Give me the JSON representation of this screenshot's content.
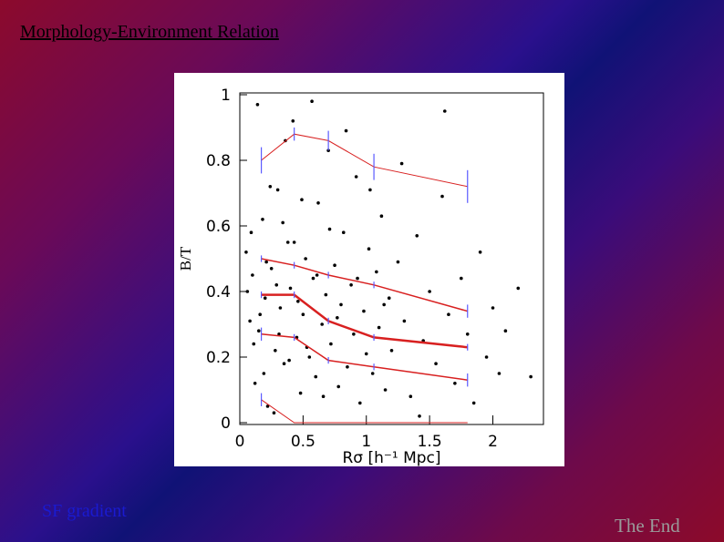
{
  "title": "Morphology-Environment Relation",
  "link": "SF gradient",
  "end": "The End",
  "chart_data": {
    "type": "scatter",
    "x_label": "Rσ [h⁻¹ Mpc]",
    "y_label": "B/T",
    "xlim": [
      0,
      2.4
    ],
    "ylim": [
      0,
      1
    ],
    "xticks": [
      0,
      0.5,
      1,
      1.5,
      2
    ],
    "yticks": [
      0,
      0.2,
      0.4,
      0.6,
      0.8,
      1
    ],
    "point_color": "#000000",
    "x": [
      0.05,
      0.08,
      0.1,
      0.12,
      0.15,
      0.18,
      0.2,
      0.22,
      0.25,
      0.28,
      0.3,
      0.32,
      0.35,
      0.38,
      0.4,
      0.42,
      0.45,
      0.48,
      0.5,
      0.52,
      0.55,
      0.58,
      0.6,
      0.62,
      0.65,
      0.68,
      0.7,
      0.72,
      0.75,
      0.78,
      0.8,
      0.82,
      0.85,
      0.88,
      0.9,
      0.92,
      0.95,
      0.98,
      1.0,
      1.02,
      1.05,
      1.08,
      1.1,
      1.12,
      1.15,
      1.18,
      1.2,
      1.25,
      1.3,
      1.35,
      1.4,
      1.45,
      1.5,
      1.55,
      1.6,
      1.65,
      1.7,
      1.75,
      1.8,
      1.85,
      1.9,
      1.95,
      2.0,
      2.05,
      2.1,
      2.2,
      2.3,
      0.06,
      0.09,
      0.11,
      0.14,
      0.16,
      0.19,
      0.21,
      0.24,
      0.27,
      0.29,
      0.31,
      0.34,
      0.36,
      0.39,
      0.43,
      0.46,
      0.49,
      0.53,
      0.57,
      0.61,
      0.66,
      0.71,
      0.77,
      0.84,
      0.93,
      1.03,
      1.14,
      1.28,
      1.42,
      1.62
    ],
    "y": [
      0.52,
      0.31,
      0.45,
      0.12,
      0.28,
      0.62,
      0.38,
      0.05,
      0.47,
      0.22,
      0.71,
      0.35,
      0.18,
      0.55,
      0.41,
      0.92,
      0.26,
      0.09,
      0.33,
      0.5,
      0.2,
      0.44,
      0.14,
      0.67,
      0.3,
      0.39,
      0.83,
      0.24,
      0.48,
      0.11,
      0.36,
      0.58,
      0.17,
      0.42,
      0.27,
      0.75,
      0.06,
      0.34,
      0.21,
      0.53,
      0.15,
      0.46,
      0.29,
      0.63,
      0.1,
      0.38,
      0.22,
      0.49,
      0.31,
      0.08,
      0.57,
      0.25,
      0.4,
      0.18,
      0.69,
      0.33,
      0.12,
      0.44,
      0.27,
      0.06,
      0.52,
      0.2,
      0.35,
      0.15,
      0.28,
      0.41,
      0.14,
      0.4,
      0.58,
      0.24,
      0.97,
      0.33,
      0.15,
      0.49,
      0.72,
      0.03,
      0.42,
      0.27,
      0.61,
      0.86,
      0.19,
      0.55,
      0.37,
      0.68,
      0.23,
      0.98,
      0.45,
      0.08,
      0.59,
      0.32,
      0.89,
      0.44,
      0.71,
      0.36,
      0.79,
      0.02,
      0.95
    ],
    "error_color": "#5a5aff",
    "series": [
      {
        "color": "#d82020",
        "width": 1,
        "x": [
          0.17,
          0.43,
          0.7,
          1.06,
          1.8
        ],
        "values": [
          0.8,
          0.88,
          0.86,
          0.78,
          0.72
        ],
        "errors": [
          0.04,
          0.02,
          0.03,
          0.04,
          0.05
        ]
      },
      {
        "color": "#d82020",
        "width": 1.5,
        "x": [
          0.17,
          0.43,
          0.7,
          1.06,
          1.8
        ],
        "values": [
          0.5,
          0.48,
          0.45,
          0.42,
          0.34
        ],
        "errors": [
          0.01,
          0.01,
          0.01,
          0.01,
          0.02
        ]
      },
      {
        "color": "#d82020",
        "width": 2.5,
        "x": [
          0.17,
          0.43,
          0.7,
          1.06,
          1.8
        ],
        "values": [
          0.39,
          0.39,
          0.31,
          0.26,
          0.23
        ],
        "errors": [
          0.01,
          0.01,
          0.01,
          0.01,
          0.01
        ]
      },
      {
        "color": "#d82020",
        "width": 1.5,
        "x": [
          0.17,
          0.43,
          0.7,
          1.06,
          1.8
        ],
        "values": [
          0.27,
          0.26,
          0.19,
          0.17,
          0.13
        ],
        "errors": [
          0.02,
          0.01,
          0.01,
          0.01,
          0.02
        ]
      },
      {
        "color": "#d82020",
        "width": 1,
        "x": [
          0.17,
          0.43,
          0.7,
          1.06,
          1.8
        ],
        "values": [
          0.07,
          0,
          0,
          0,
          0
        ],
        "errors": [
          0.02,
          0,
          0,
          0,
          0
        ]
      }
    ]
  }
}
